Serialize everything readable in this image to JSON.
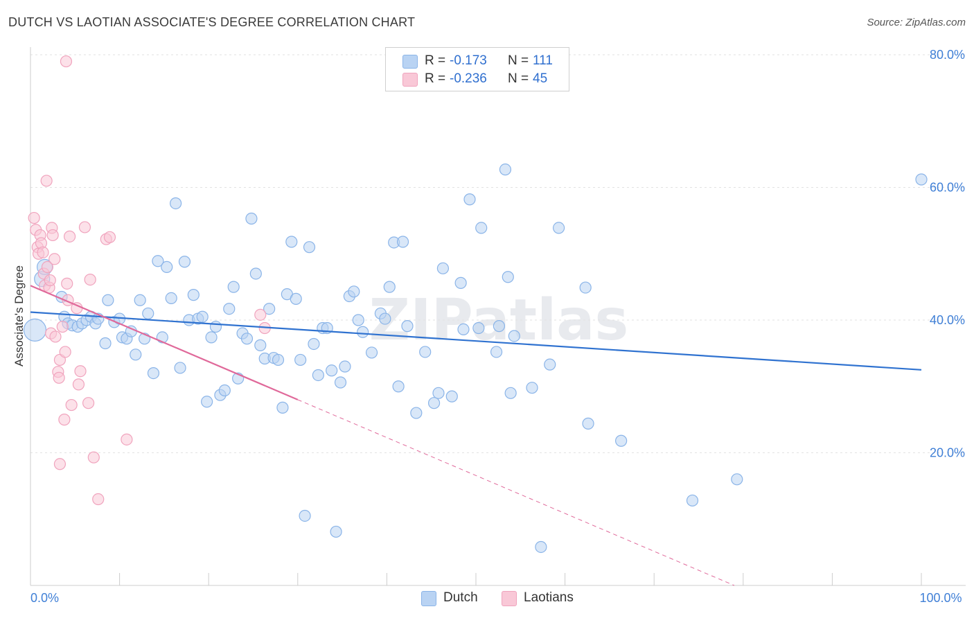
{
  "chart_data": {
    "type": "scatter",
    "title": "DUTCH VS LAOTIAN ASSOCIATE'S DEGREE CORRELATION CHART",
    "source": "Source: ZipAtlas.com",
    "watermark": "ZIPatlas",
    "xlabel": "",
    "ylabel": "Associate's Degree",
    "xlim": [
      0,
      100
    ],
    "ylim": [
      0,
      80
    ],
    "x_ticks": [
      0,
      10,
      20,
      30,
      40,
      50,
      60,
      70,
      80,
      90,
      100
    ],
    "x_tick_labels": [
      {
        "value": 0,
        "label": "0.0%"
      },
      {
        "value": 100,
        "label": "100.0%"
      }
    ],
    "y_tick_labels": [
      {
        "value": 20,
        "label": "20.0%"
      },
      {
        "value": 40,
        "label": "40.0%"
      },
      {
        "value": 60,
        "label": "60.0%"
      },
      {
        "value": 80,
        "label": "80.0%"
      }
    ],
    "grid": "horizontal dashed",
    "legend_top": [
      {
        "name": "Dutch",
        "r_label": "R =",
        "r_value": "-0.173",
        "n_label": "N =",
        "n_value": "111"
      },
      {
        "name": "Laotians",
        "r_label": "R =",
        "r_value": "-0.236",
        "n_label": "N =",
        "n_value": "45"
      }
    ],
    "legend_bottom": [
      "Dutch",
      "Laotians"
    ],
    "series": [
      {
        "name": "Dutch",
        "color": "#8ab4e8",
        "fill": "#b9d3f3",
        "line_color": "#2f72d0",
        "trend": {
          "x": [
            0,
            100
          ],
          "y": [
            41.2,
            32.5
          ],
          "dashed_extension": false
        },
        "points": [
          [
            0.5,
            38.5,
            "L"
          ],
          [
            1.3,
            46.2,
            "M"
          ],
          [
            1.6,
            48,
            "M"
          ],
          [
            3.5,
            43.5
          ],
          [
            3.8,
            40.5
          ],
          [
            4.2,
            39.5
          ],
          [
            4.7,
            39.2
          ],
          [
            5.3,
            39
          ],
          [
            5.8,
            39.5
          ],
          [
            6.3,
            40
          ],
          [
            6.8,
            40.5
          ],
          [
            7.3,
            39.5
          ],
          [
            7.6,
            40.2
          ],
          [
            8.4,
            36.5
          ],
          [
            8.7,
            43
          ],
          [
            9.4,
            39.7
          ],
          [
            10,
            40.2
          ],
          [
            10.3,
            37.4
          ],
          [
            10.8,
            37.2
          ],
          [
            11.3,
            38.3
          ],
          [
            11.8,
            34.8
          ],
          [
            12.3,
            43
          ],
          [
            12.8,
            37.2
          ],
          [
            13.2,
            41
          ],
          [
            13.8,
            32
          ],
          [
            14.3,
            48.9
          ],
          [
            14.8,
            37.4
          ],
          [
            15.3,
            48
          ],
          [
            15.8,
            43.3
          ],
          [
            16.3,
            57.6
          ],
          [
            16.8,
            32.8
          ],
          [
            17.3,
            48.8
          ],
          [
            17.8,
            40
          ],
          [
            18.3,
            43.8
          ],
          [
            18.8,
            40.2
          ],
          [
            19.3,
            40.5
          ],
          [
            19.8,
            27.7
          ],
          [
            20.3,
            37.4
          ],
          [
            20.8,
            39
          ],
          [
            21.3,
            28.7
          ],
          [
            21.8,
            29.4
          ],
          [
            22.3,
            41.7
          ],
          [
            22.8,
            45
          ],
          [
            23.3,
            31.2
          ],
          [
            23.8,
            38
          ],
          [
            24.3,
            37.2
          ],
          [
            24.8,
            55.3
          ],
          [
            25.3,
            47
          ],
          [
            25.8,
            36.2
          ],
          [
            26.3,
            34.2
          ],
          [
            26.8,
            41.7
          ],
          [
            27.3,
            34.3
          ],
          [
            27.8,
            34
          ],
          [
            28.3,
            26.8
          ],
          [
            28.8,
            43.9
          ],
          [
            29.3,
            51.8
          ],
          [
            29.8,
            43.2
          ],
          [
            30.3,
            34
          ],
          [
            30.8,
            10.5
          ],
          [
            31.3,
            51
          ],
          [
            31.8,
            36.4
          ],
          [
            32.3,
            31.7
          ],
          [
            32.8,
            38.8
          ],
          [
            33.3,
            38.8
          ],
          [
            33.8,
            32.4
          ],
          [
            34.3,
            8.1
          ],
          [
            34.8,
            30.6
          ],
          [
            35.3,
            33
          ],
          [
            35.8,
            43.6
          ],
          [
            36.3,
            44.3
          ],
          [
            36.8,
            40
          ],
          [
            37.3,
            38.2
          ],
          [
            38.3,
            35.1
          ],
          [
            39.3,
            41
          ],
          [
            39.8,
            40.2
          ],
          [
            40.3,
            45
          ],
          [
            40.8,
            51.7
          ],
          [
            41.3,
            30
          ],
          [
            41.8,
            51.8
          ],
          [
            42.3,
            39.1
          ],
          [
            43.3,
            26
          ],
          [
            44.3,
            35.2
          ],
          [
            45.3,
            27.5
          ],
          [
            45.8,
            29
          ],
          [
            46.3,
            47.8
          ],
          [
            47.3,
            28.5
          ],
          [
            48.3,
            45.6
          ],
          [
            48.6,
            38.6
          ],
          [
            49.3,
            58.2
          ],
          [
            50.3,
            38.8
          ],
          [
            50.6,
            53.9
          ],
          [
            52.3,
            35.2
          ],
          [
            52.6,
            39.1
          ],
          [
            53.3,
            62.7
          ],
          [
            53.6,
            46.5
          ],
          [
            53.9,
            29
          ],
          [
            54.3,
            37.6
          ],
          [
            56.3,
            29.8
          ],
          [
            58.3,
            33.3
          ],
          [
            57.3,
            5.8
          ],
          [
            59.3,
            53.9
          ],
          [
            62.3,
            44.9
          ],
          [
            62.6,
            24.4
          ],
          [
            66.3,
            21.8
          ],
          [
            74.3,
            12.8
          ],
          [
            79.3,
            16
          ],
          [
            100,
            61.2
          ]
        ]
      },
      {
        "name": "Laotians",
        "color": "#f0a3bd",
        "fill": "#f9c8d7",
        "line_color": "#e0699a",
        "trend": {
          "x": [
            0,
            30
          ],
          "y": [
            45.2,
            28
          ],
          "dashed_extension": true,
          "dash_to": {
            "x": 79,
            "y": 0
          }
        },
        "points": [
          [
            0.4,
            55.4
          ],
          [
            0.6,
            53.6
          ],
          [
            0.8,
            51
          ],
          [
            0.9,
            50
          ],
          [
            1.1,
            52.8
          ],
          [
            1.2,
            51.6
          ],
          [
            1.4,
            50.2
          ],
          [
            1.5,
            47
          ],
          [
            1.6,
            45.2
          ],
          [
            1.8,
            61
          ],
          [
            1.9,
            48
          ],
          [
            2.1,
            44.9
          ],
          [
            2.2,
            46
          ],
          [
            2.3,
            38
          ],
          [
            2.4,
            53.9
          ],
          [
            2.5,
            52.8
          ],
          [
            2.7,
            49.2
          ],
          [
            2.8,
            37.5
          ],
          [
            3.1,
            32.2
          ],
          [
            3.2,
            31.3
          ],
          [
            3.3,
            34
          ],
          [
            3.6,
            39
          ],
          [
            3.8,
            25
          ],
          [
            3.9,
            35.2
          ],
          [
            4.1,
            45.5
          ],
          [
            4.2,
            43
          ],
          [
            4.4,
            52.6
          ],
          [
            4.6,
            27.2
          ],
          [
            5.2,
            41.8
          ],
          [
            5.4,
            30.3
          ],
          [
            5.6,
            32.3
          ],
          [
            6.1,
            54
          ],
          [
            6.5,
            27.5
          ],
          [
            6.7,
            46.1
          ],
          [
            7.1,
            19.3
          ],
          [
            7.6,
            13
          ],
          [
            8.5,
            52.2
          ],
          [
            8.9,
            52.5
          ],
          [
            10.8,
            22
          ],
          [
            3.3,
            18.3
          ],
          [
            25.8,
            40.8
          ],
          [
            26.3,
            38.8
          ],
          [
            4,
            79
          ]
        ]
      }
    ]
  }
}
